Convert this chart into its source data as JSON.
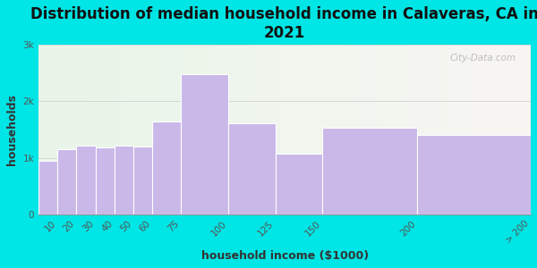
{
  "title": "Distribution of median household income in Calaveras, CA in\n2021",
  "xlabel": "household income ($1000)",
  "ylabel": "households",
  "bar_labels": [
    "10",
    "20",
    "30",
    "40",
    "50",
    "60",
    "75",
    "100",
    "125",
    "150",
    "200",
    "> 200"
  ],
  "bar_values": [
    950,
    1150,
    1220,
    1180,
    1220,
    1200,
    1650,
    2480,
    1620,
    1080,
    1530,
    1400
  ],
  "bar_lefts": [
    0,
    10,
    20,
    30,
    40,
    50,
    60,
    75,
    100,
    125,
    150,
    200
  ],
  "bar_widths": [
    10,
    10,
    10,
    10,
    10,
    10,
    15,
    25,
    25,
    25,
    50,
    60
  ],
  "bar_color": "#c9b8e8",
  "bar_edge_color": "#ffffff",
  "background_color": "#00e5e5",
  "ylim": [
    0,
    3000
  ],
  "yticks": [
    0,
    1000,
    2000,
    3000
  ],
  "ytick_labels": [
    "0",
    "1k",
    "2k",
    "3k"
  ],
  "title_fontsize": 12,
  "axis_label_fontsize": 9,
  "tick_fontsize": 7.5,
  "watermark_text": "City-Data.com"
}
